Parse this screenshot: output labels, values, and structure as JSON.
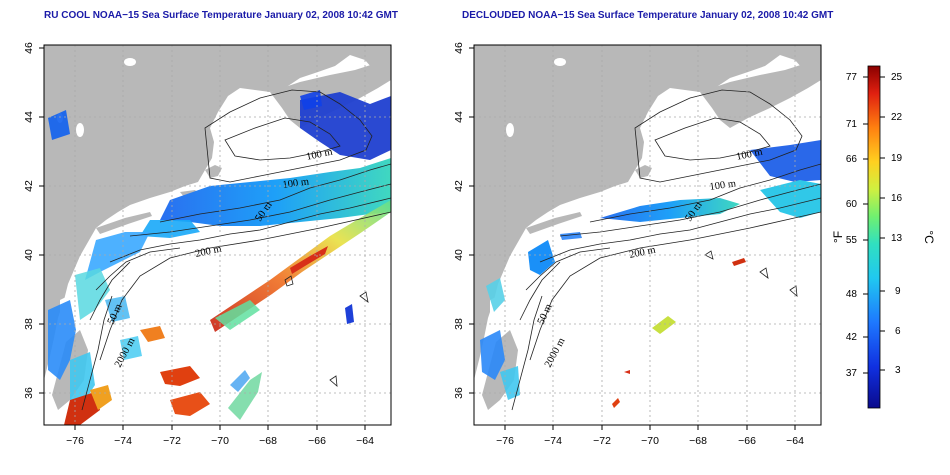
{
  "panels": [
    {
      "title": "RU COOL NOAA−15 Sea Surface Temperature January 02, 2008 10:42 GMT",
      "contour_labels": [
        "100 m",
        "100 m",
        "50 m",
        "200 m",
        "50 m",
        "2000 m"
      ]
    },
    {
      "title": "DECLOUDED NOAA−15 Sea Surface Temperature January 02, 2008 10:42 GMT",
      "contour_labels": [
        "100 m",
        "100 m",
        "50 m",
        "200 m",
        "50 m",
        "2000 m"
      ]
    }
  ],
  "axes": {
    "lon_ticks": [
      "−76",
      "−74",
      "−72",
      "−70",
      "−68",
      "−66",
      "−64"
    ],
    "lat_ticks": [
      "46",
      "44",
      "42",
      "40",
      "38",
      "36"
    ]
  },
  "colorbar": {
    "fahrenheit_label": "°F",
    "celsius_label": "°C",
    "fahrenheit_ticks": [
      "77",
      "71",
      "66",
      "60",
      "55",
      "48",
      "42",
      "37"
    ],
    "celsius_ticks": [
      "25",
      "22",
      "19",
      "16",
      "13",
      "9",
      "6",
      "3"
    ]
  },
  "colors": {
    "land": "#b8b8b8",
    "title": "#1a1aa8",
    "grid": "#aaaaaa"
  }
}
